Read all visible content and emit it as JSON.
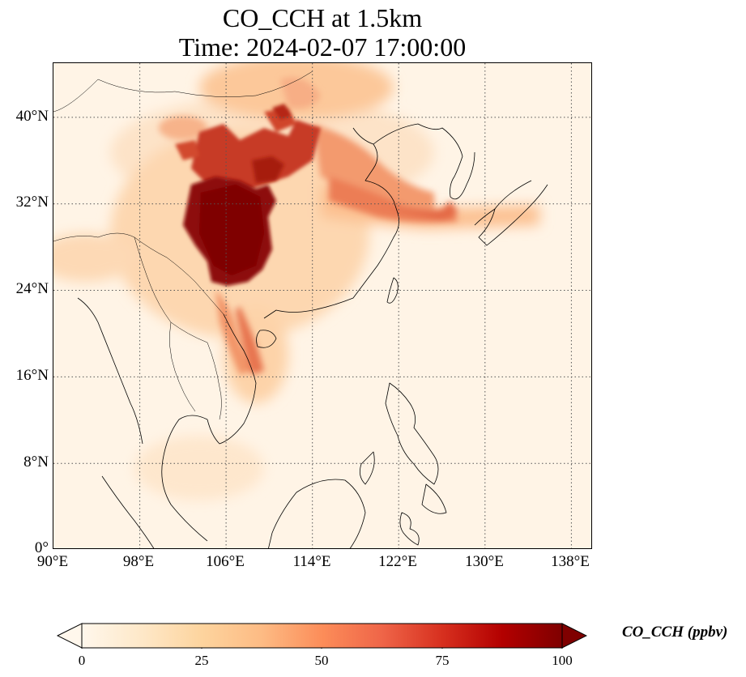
{
  "title": {
    "line1": "CO_CCH at 1.5km",
    "line2": "Time: 2024-02-07 17:00:00"
  },
  "map": {
    "variable": "CO_CCH",
    "level": "1.5km",
    "lon_range": [
      90,
      140
    ],
    "lat_range": [
      0,
      45
    ],
    "projection": "PlateCarree",
    "colormap": "OrRd",
    "gridlines": "dotted",
    "lon_ticks": [
      "90°E",
      "98°E",
      "106°E",
      "114°E",
      "122°E",
      "130°E",
      "138°E"
    ],
    "lat_ticks": [
      "0°",
      "8°N",
      "16°N",
      "24°N",
      "32°N",
      "40°N"
    ],
    "lon_tick_values": [
      90,
      98,
      106,
      114,
      122,
      130,
      138
    ],
    "lat_tick_values": [
      0,
      8,
      16,
      24,
      32,
      40
    ]
  },
  "colorbar": {
    "label": "CO_CCH (ppbv)",
    "ticks": [
      "0",
      "25",
      "50",
      "75",
      "100"
    ],
    "tick_values": [
      0,
      25,
      50,
      75,
      100
    ],
    "vmin": 0,
    "vmax": 100,
    "extend": "both",
    "colors": [
      "#fff7ec",
      "#fee8c8",
      "#fdd49e",
      "#fdbb84",
      "#fc8d59",
      "#ef6548",
      "#d7301f",
      "#b30000",
      "#7f0000"
    ]
  }
}
